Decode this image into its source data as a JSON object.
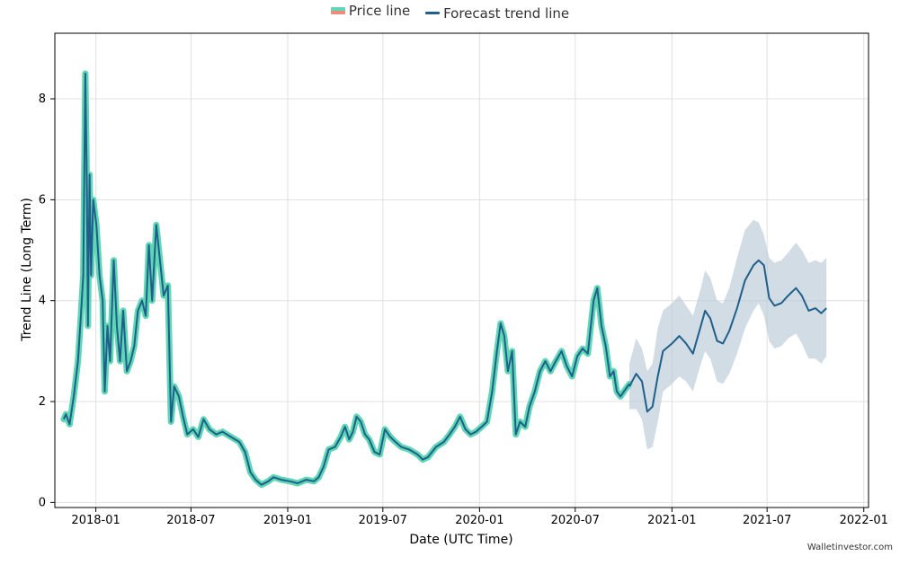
{
  "chart_data": {
    "type": "line",
    "title": "",
    "xlabel": "Date (UTC Time)",
    "ylabel": "Trend Line (Long Term)",
    "ylim": [
      -0.1,
      9.3
    ],
    "xlim": [
      "2017-10-15",
      "2022-01-10"
    ],
    "grid": true,
    "legend_position": "top-center",
    "x_ticks": [
      "2018-01",
      "2018-07",
      "2019-01",
      "2019-07",
      "2020-01",
      "2020-07",
      "2021-01",
      "2021-07",
      "2022-01"
    ],
    "y_ticks": [
      0,
      2,
      4,
      6,
      8
    ],
    "series": [
      {
        "name": "Price line",
        "color": "#5fd6b4",
        "points": [
          [
            "2017-11-01",
            1.65
          ],
          [
            "2017-11-05",
            1.75
          ],
          [
            "2017-11-12",
            1.55
          ],
          [
            "2017-11-20",
            2.1
          ],
          [
            "2017-11-28",
            2.8
          ],
          [
            "2017-12-03",
            3.6
          ],
          [
            "2017-12-08",
            4.5
          ],
          [
            "2017-12-12",
            8.5
          ],
          [
            "2017-12-15",
            6.2
          ],
          [
            "2017-12-17",
            3.5
          ],
          [
            "2017-12-20",
            6.5
          ],
          [
            "2017-12-23",
            4.5
          ],
          [
            "2017-12-27",
            6.0
          ],
          [
            "2018-01-02",
            5.5
          ],
          [
            "2018-01-08",
            4.5
          ],
          [
            "2018-01-14",
            4.0
          ],
          [
            "2018-01-18",
            2.2
          ],
          [
            "2018-01-23",
            3.5
          ],
          [
            "2018-01-28",
            2.8
          ],
          [
            "2018-02-04",
            4.8
          ],
          [
            "2018-02-10",
            3.5
          ],
          [
            "2018-02-16",
            2.8
          ],
          [
            "2018-02-22",
            3.8
          ],
          [
            "2018-03-01",
            2.6
          ],
          [
            "2018-03-08",
            2.8
          ],
          [
            "2018-03-15",
            3.1
          ],
          [
            "2018-03-22",
            3.8
          ],
          [
            "2018-03-30",
            4.0
          ],
          [
            "2018-04-06",
            3.7
          ],
          [
            "2018-04-12",
            5.1
          ],
          [
            "2018-04-18",
            4.0
          ],
          [
            "2018-04-26",
            5.5
          ],
          [
            "2018-05-03",
            4.8
          ],
          [
            "2018-05-10",
            4.1
          ],
          [
            "2018-05-18",
            4.3
          ],
          [
            "2018-05-24",
            1.6
          ],
          [
            "2018-05-30",
            2.3
          ],
          [
            "2018-06-08",
            2.1
          ],
          [
            "2018-06-16",
            1.7
          ],
          [
            "2018-06-24",
            1.35
          ],
          [
            "2018-07-05",
            1.45
          ],
          [
            "2018-07-15",
            1.3
          ],
          [
            "2018-07-25",
            1.65
          ],
          [
            "2018-08-05",
            1.45
          ],
          [
            "2018-08-18",
            1.35
          ],
          [
            "2018-08-30",
            1.4
          ],
          [
            "2018-09-15",
            1.3
          ],
          [
            "2018-10-01",
            1.2
          ],
          [
            "2018-10-12",
            1.0
          ],
          [
            "2018-10-22",
            0.6
          ],
          [
            "2018-11-01",
            0.45
          ],
          [
            "2018-11-12",
            0.35
          ],
          [
            "2018-11-25",
            0.42
          ],
          [
            "2018-12-05",
            0.5
          ],
          [
            "2018-12-20",
            0.45
          ],
          [
            "2019-01-05",
            0.42
          ],
          [
            "2019-01-20",
            0.38
          ],
          [
            "2019-02-05",
            0.45
          ],
          [
            "2019-02-20",
            0.42
          ],
          [
            "2019-03-01",
            0.5
          ],
          [
            "2019-03-10",
            0.7
          ],
          [
            "2019-03-20",
            1.05
          ],
          [
            "2019-04-01",
            1.1
          ],
          [
            "2019-04-12",
            1.3
          ],
          [
            "2019-04-20",
            1.5
          ],
          [
            "2019-04-28",
            1.25
          ],
          [
            "2019-05-05",
            1.4
          ],
          [
            "2019-05-12",
            1.7
          ],
          [
            "2019-05-20",
            1.6
          ],
          [
            "2019-05-28",
            1.35
          ],
          [
            "2019-06-05",
            1.25
          ],
          [
            "2019-06-15",
            1.0
          ],
          [
            "2019-06-25",
            0.95
          ],
          [
            "2019-07-05",
            1.45
          ],
          [
            "2019-07-15",
            1.3
          ],
          [
            "2019-07-25",
            1.2
          ],
          [
            "2019-08-05",
            1.1
          ],
          [
            "2019-08-20",
            1.05
          ],
          [
            "2019-09-05",
            0.95
          ],
          [
            "2019-09-15",
            0.85
          ],
          [
            "2019-09-25",
            0.9
          ],
          [
            "2019-10-10",
            1.1
          ],
          [
            "2019-10-25",
            1.2
          ],
          [
            "2019-11-05",
            1.35
          ],
          [
            "2019-11-15",
            1.5
          ],
          [
            "2019-11-25",
            1.7
          ],
          [
            "2019-12-05",
            1.45
          ],
          [
            "2019-12-15",
            1.35
          ],
          [
            "2019-12-25",
            1.4
          ],
          [
            "2020-01-05",
            1.5
          ],
          [
            "2020-01-15",
            1.6
          ],
          [
            "2020-01-25",
            2.2
          ],
          [
            "2020-02-03",
            3.0
          ],
          [
            "2020-02-10",
            3.55
          ],
          [
            "2020-02-17",
            3.3
          ],
          [
            "2020-02-24",
            2.6
          ],
          [
            "2020-03-03",
            3.0
          ],
          [
            "2020-03-10",
            1.35
          ],
          [
            "2020-03-18",
            1.6
          ],
          [
            "2020-03-28",
            1.5
          ],
          [
            "2020-04-05",
            1.9
          ],
          [
            "2020-04-15",
            2.2
          ],
          [
            "2020-04-25",
            2.6
          ],
          [
            "2020-05-05",
            2.8
          ],
          [
            "2020-05-15",
            2.6
          ],
          [
            "2020-05-25",
            2.8
          ],
          [
            "2020-06-05",
            3.0
          ],
          [
            "2020-06-15",
            2.7
          ],
          [
            "2020-06-25",
            2.5
          ],
          [
            "2020-07-05",
            2.9
          ],
          [
            "2020-07-15",
            3.05
          ],
          [
            "2020-07-25",
            2.95
          ],
          [
            "2020-08-05",
            4.0
          ],
          [
            "2020-08-12",
            4.25
          ],
          [
            "2020-08-20",
            3.5
          ],
          [
            "2020-08-28",
            3.1
          ],
          [
            "2020-09-05",
            2.5
          ],
          [
            "2020-09-12",
            2.6
          ],
          [
            "2020-09-18",
            2.2
          ],
          [
            "2020-09-25",
            2.1
          ],
          [
            "2020-10-05",
            2.25
          ],
          [
            "2020-10-12",
            2.35
          ]
        ]
      },
      {
        "name": "Forecast trend line",
        "color": "#1f5f8b",
        "points": [
          [
            "2020-10-12",
            2.3
          ],
          [
            "2020-10-25",
            2.55
          ],
          [
            "2020-11-05",
            2.4
          ],
          [
            "2020-11-15",
            1.8
          ],
          [
            "2020-11-25",
            1.9
          ],
          [
            "2020-12-05",
            2.5
          ],
          [
            "2020-12-15",
            3.0
          ],
          [
            "2021-01-01",
            3.15
          ],
          [
            "2021-01-15",
            3.3
          ],
          [
            "2021-01-28",
            3.15
          ],
          [
            "2021-02-10",
            2.95
          ],
          [
            "2021-02-25",
            3.5
          ],
          [
            "2021-03-05",
            3.8
          ],
          [
            "2021-03-15",
            3.65
          ],
          [
            "2021-03-28",
            3.2
          ],
          [
            "2021-04-08",
            3.15
          ],
          [
            "2021-04-20",
            3.4
          ],
          [
            "2021-05-05",
            3.85
          ],
          [
            "2021-05-20",
            4.4
          ],
          [
            "2021-06-05",
            4.7
          ],
          [
            "2021-06-15",
            4.8
          ],
          [
            "2021-06-25",
            4.7
          ],
          [
            "2021-07-05",
            4.05
          ],
          [
            "2021-07-15",
            3.9
          ],
          [
            "2021-07-28",
            3.95
          ],
          [
            "2021-08-10",
            4.1
          ],
          [
            "2021-08-25",
            4.25
          ],
          [
            "2021-09-05",
            4.1
          ],
          [
            "2021-09-18",
            3.8
          ],
          [
            "2021-10-01",
            3.85
          ],
          [
            "2021-10-12",
            3.75
          ],
          [
            "2021-10-22",
            3.85
          ]
        ],
        "upper": [
          [
            "2020-10-12",
            2.75
          ],
          [
            "2020-10-25",
            3.25
          ],
          [
            "2020-11-05",
            3.05
          ],
          [
            "2020-11-15",
            2.6
          ],
          [
            "2020-11-25",
            2.75
          ],
          [
            "2020-12-05",
            3.45
          ],
          [
            "2020-12-15",
            3.8
          ],
          [
            "2021-01-01",
            3.95
          ],
          [
            "2021-01-15",
            4.1
          ],
          [
            "2021-01-28",
            3.9
          ],
          [
            "2021-02-10",
            3.7
          ],
          [
            "2021-02-25",
            4.25
          ],
          [
            "2021-03-05",
            4.6
          ],
          [
            "2021-03-15",
            4.45
          ],
          [
            "2021-03-28",
            4.0
          ],
          [
            "2021-04-08",
            3.95
          ],
          [
            "2021-04-20",
            4.25
          ],
          [
            "2021-05-05",
            4.85
          ],
          [
            "2021-05-20",
            5.4
          ],
          [
            "2021-06-05",
            5.6
          ],
          [
            "2021-06-15",
            5.55
          ],
          [
            "2021-06-25",
            5.3
          ],
          [
            "2021-07-05",
            4.85
          ],
          [
            "2021-07-15",
            4.75
          ],
          [
            "2021-07-28",
            4.8
          ],
          [
            "2021-08-10",
            4.95
          ],
          [
            "2021-08-25",
            5.15
          ],
          [
            "2021-09-05",
            5.0
          ],
          [
            "2021-09-18",
            4.75
          ],
          [
            "2021-10-01",
            4.8
          ],
          [
            "2021-10-12",
            4.75
          ],
          [
            "2021-10-22",
            4.85
          ]
        ],
        "lower": [
          [
            "2020-10-12",
            1.85
          ],
          [
            "2020-10-25",
            1.85
          ],
          [
            "2020-11-05",
            1.65
          ],
          [
            "2020-11-15",
            1.05
          ],
          [
            "2020-11-25",
            1.1
          ],
          [
            "2020-12-05",
            1.6
          ],
          [
            "2020-12-15",
            2.2
          ],
          [
            "2021-01-01",
            2.35
          ],
          [
            "2021-01-15",
            2.5
          ],
          [
            "2021-01-28",
            2.4
          ],
          [
            "2021-02-10",
            2.2
          ],
          [
            "2021-02-25",
            2.75
          ],
          [
            "2021-03-05",
            3.0
          ],
          [
            "2021-03-15",
            2.85
          ],
          [
            "2021-03-28",
            2.4
          ],
          [
            "2021-04-08",
            2.35
          ],
          [
            "2021-04-20",
            2.55
          ],
          [
            "2021-05-05",
            2.95
          ],
          [
            "2021-05-20",
            3.45
          ],
          [
            "2021-06-05",
            3.8
          ],
          [
            "2021-06-15",
            3.95
          ],
          [
            "2021-06-25",
            3.7
          ],
          [
            "2021-07-05",
            3.2
          ],
          [
            "2021-07-15",
            3.05
          ],
          [
            "2021-07-28",
            3.1
          ],
          [
            "2021-08-10",
            3.25
          ],
          [
            "2021-08-25",
            3.35
          ],
          [
            "2021-09-05",
            3.15
          ],
          [
            "2021-09-18",
            2.85
          ],
          [
            "2021-10-01",
            2.85
          ],
          [
            "2021-10-12",
            2.75
          ],
          [
            "2021-10-22",
            2.9
          ]
        ]
      }
    ]
  },
  "colors": {
    "price_glow": "#5fd6b4",
    "price_line": "#1f5f8b",
    "forecast_line": "#1f5f8b",
    "forecast_band": "#b8c9d6",
    "legend_price_alt": "#ef8a80",
    "grid": "#e0e0e0"
  },
  "watermark": "Walletinvestor.com"
}
